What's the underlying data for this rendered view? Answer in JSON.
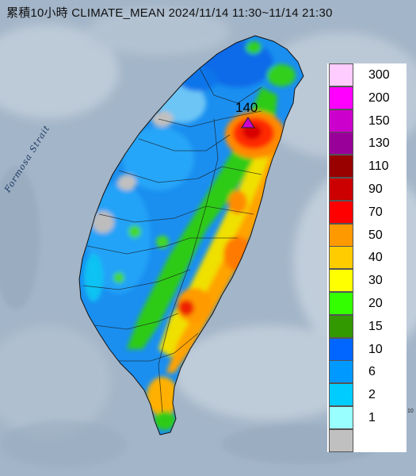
{
  "title": "累積10小時 CLIMATE_MEAN 2024/11/14 11:30~11/14 21:30",
  "strait_label": "Formosa Strait",
  "max_value": "140",
  "corner_mark": "10",
  "icons": {
    "max_marker": "triangle-marker-icon"
  },
  "legend": {
    "levels": [
      {
        "label": "300",
        "color": "#ffccff"
      },
      {
        "label": "200",
        "color": "#ff00ff"
      },
      {
        "label": "150",
        "color": "#cc00cc"
      },
      {
        "label": "130",
        "color": "#990099"
      },
      {
        "label": "110",
        "color": "#990000"
      },
      {
        "label": "90",
        "color": "#cc0000"
      },
      {
        "label": "70",
        "color": "#ff0000"
      },
      {
        "label": "50",
        "color": "#ff9900"
      },
      {
        "label": "40",
        "color": "#ffcc00"
      },
      {
        "label": "30",
        "color": "#ffff00"
      },
      {
        "label": "20",
        "color": "#33ff00"
      },
      {
        "label": "15",
        "color": "#339900"
      },
      {
        "label": "10",
        "color": "#0066ff"
      },
      {
        "label": "6",
        "color": "#0099ff"
      },
      {
        "label": "2",
        "color": "#00ccff"
      },
      {
        "label": "1",
        "color": "#99ffff"
      },
      {
        "label": "",
        "color": "#c0c0c0"
      }
    ]
  }
}
